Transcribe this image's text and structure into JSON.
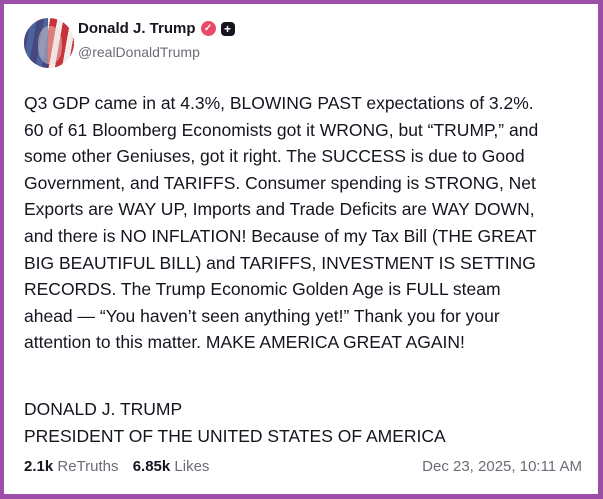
{
  "author": {
    "name": "Donald J. Trump",
    "handle": "@realDonaldTrump",
    "verified_icon": "verified-badge-icon",
    "plus_icon": "plus-badge-icon"
  },
  "post": {
    "lines": [
      "Q3 GDP came in at 4.3%, BLOWING PAST expectations of 3.2%.",
      "60 of 61 Bloomberg Economists got it WRONG, but “TRUMP,” and",
      "some other Geniuses, got it right. The SUCCESS is due to Good",
      "Government, and TARIFFS. Consumer spending is STRONG, Net",
      "Exports are WAY UP, Imports and Trade Deficits are WAY DOWN,",
      "and there is NO INFLATION! Because of my Tax Bill (THE GREAT",
      "BIG BEAUTIFUL BILL) and TARIFFS, INVESTMENT IS SETTING",
      "RECORDS. The Trump Economic Golden Age is FULL steam",
      "ahead — “You haven’t seen anything yet!” Thank you for your",
      "attention to this matter. MAKE AMERICA GREAT AGAIN!"
    ],
    "signature": [
      "DONALD J. TRUMP",
      "PRESIDENT OF THE UNITED STATES OF AMERICA"
    ]
  },
  "stats": {
    "retruths_count": "2.1k",
    "retruths_label": "ReTruths",
    "likes_count": "6.85k",
    "likes_label": "Likes",
    "timestamp": "Dec 23, 2025, 10:11 AM"
  },
  "colors": {
    "border": "#9c4fa7",
    "verified": "#e84a6a"
  }
}
